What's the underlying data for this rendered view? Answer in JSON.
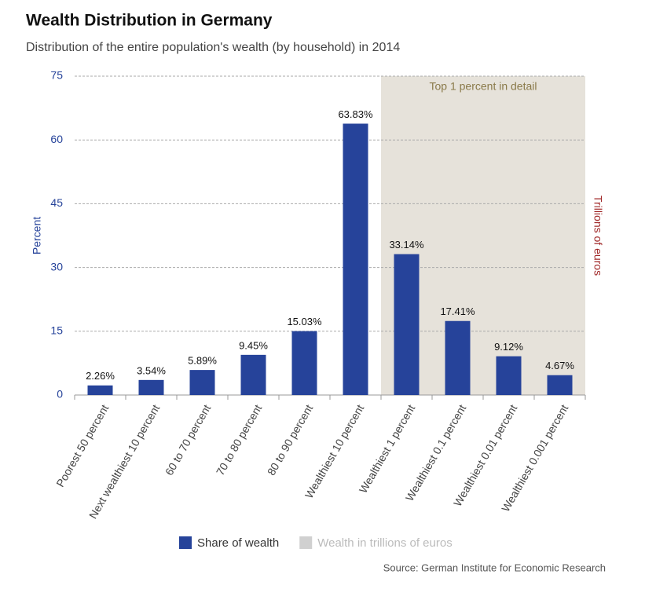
{
  "chart_data": {
    "type": "bar",
    "title": "Wealth Distribution in Germany",
    "subtitle": "Distribution of the entire population's wealth (by household) in 2014",
    "y_label": "Percent",
    "y2_label": "Trillions of euros",
    "annotation": "Top 1 percent in detail",
    "highlight_from": "Wealthiest 1 percent",
    "source": "Source: German Institute for Economic Research",
    "categories": [
      "Poorest 50 percent",
      "Next wealthiest 10 percent",
      "60 to 70 percent",
      "70 to 80 percent",
      "80 to 90 percent",
      "Wealthiest 10 percent",
      "Wealthiest 1 percent",
      "Wealthiest 0.1 percent",
      "Wealthiest 0.01 percent",
      "Wealthiest 0.001 percent"
    ],
    "series": [
      {
        "name": "Share of wealth",
        "color": "#26439a",
        "values": [
          2.26,
          3.54,
          5.89,
          9.45,
          15.03,
          63.83,
          33.14,
          17.41,
          9.12,
          4.67
        ],
        "value_labels": [
          "2.26%",
          "3.54%",
          "5.89%",
          "9.45%",
          "15.03%",
          "63.83%",
          "33.14%",
          "17.41%",
          "9.12%",
          "4.67%"
        ]
      },
      {
        "name": "Wealth in trillions of euros",
        "color": "#d0d0d0",
        "axis": "y2",
        "values": [
          null,
          null,
          null,
          null,
          null,
          null,
          null,
          null,
          null,
          null
        ]
      }
    ],
    "ylim": [
      0,
      75
    ],
    "yticks": [
      0,
      15,
      30,
      45,
      60,
      75
    ],
    "grid": true
  }
}
